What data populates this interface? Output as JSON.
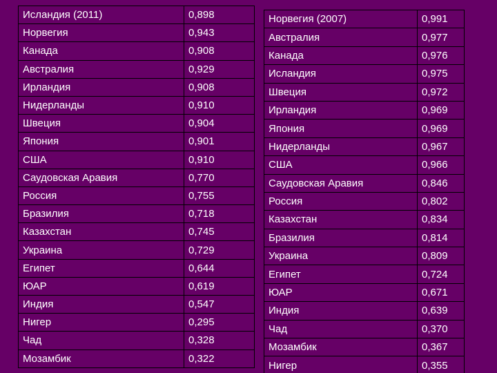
{
  "left_table": {
    "rows": [
      {
        "country": "Исландия (2011)",
        "value": "0,898"
      },
      {
        "country": "Норвегия",
        "value": "0,943"
      },
      {
        "country": "Канада",
        "value": "0,908"
      },
      {
        "country": "Австралия",
        "value": "0,929"
      },
      {
        "country": "Ирландия",
        "value": "0,908"
      },
      {
        "country": "Нидерланды",
        "value": "0,910"
      },
      {
        "country": "Швеция",
        "value": "0,904"
      },
      {
        "country": "Япония",
        "value": "0,901"
      },
      {
        "country": "США",
        "value": "0,910"
      },
      {
        "country": "Саудовская Аравия",
        "value": "0,770"
      },
      {
        "country": "Россия",
        "value": "0,755"
      },
      {
        "country": "Бразилия",
        "value": "0,718"
      },
      {
        "country": "Казахстан",
        "value": "0,745"
      },
      {
        "country": "Украина",
        "value": "0,729"
      },
      {
        "country": "Египет",
        "value": "0,644"
      },
      {
        "country": "ЮАР",
        "value": "0,619"
      },
      {
        "country": "Индия",
        "value": "0,547"
      },
      {
        "country": "Нигер",
        "value": "0,295"
      },
      {
        "country": "Чад",
        "value": "0,328"
      },
      {
        "country": "Мозамбик",
        "value": "0,322"
      }
    ]
  },
  "right_table": {
    "rows": [
      {
        "country": "Норвегия (2007)",
        "value": "0,991"
      },
      {
        "country": "Австралия",
        "value": "0,977"
      },
      {
        "country": "Канада",
        "value": "0,976"
      },
      {
        "country": "Исландия",
        "value": "0,975"
      },
      {
        "country": "Швеция",
        "value": "0,972"
      },
      {
        "country": "Ирландия",
        "value": "0,969"
      },
      {
        "country": "Япония",
        "value": "0,969"
      },
      {
        "country": "Нидерланды",
        "value": "0,967"
      },
      {
        "country": "США",
        "value": "0,966"
      },
      {
        "country": "Саудовская Аравия",
        "value": "0,846"
      },
      {
        "country": "Россия",
        "value": "0,802"
      },
      {
        "country": "Казахстан",
        "value": "0,834"
      },
      {
        "country": "Бразилия",
        "value": "0,814"
      },
      {
        "country": "Украина",
        "value": "0,809"
      },
      {
        "country": "Египет",
        "value": "0,724"
      },
      {
        "country": "ЮАР",
        "value": "0,671"
      },
      {
        "country": "Индия",
        "value": "0,639"
      },
      {
        "country": "Чад",
        "value": "0,370"
      },
      {
        "country": "Мозамбик",
        "value": "0,367"
      },
      {
        "country": "Нигер",
        "value": "0,355"
      }
    ]
  },
  "colors": {
    "background": "#660066",
    "text": "#ffffff",
    "border": "#000000"
  }
}
